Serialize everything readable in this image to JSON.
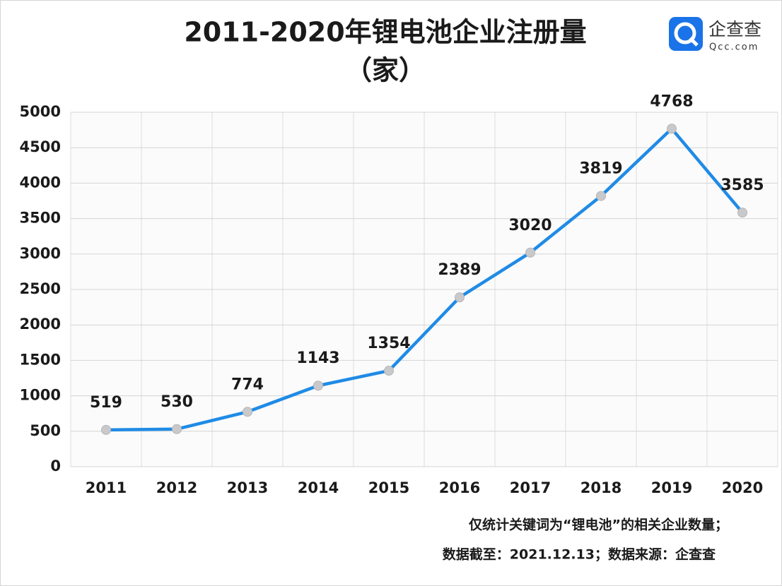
{
  "chart_data": {
    "type": "line",
    "title": "2011-2020年锂电池企业注册量",
    "subtitle": "（家）",
    "logo": {
      "name": "企查查",
      "domain": "Qcc.com"
    },
    "categories": [
      "2011",
      "2012",
      "2013",
      "2014",
      "2015",
      "2016",
      "2017",
      "2018",
      "2019",
      "2020"
    ],
    "series": [
      {
        "name": "锂电池企业注册量",
        "color": "#1f8be6",
        "marker_color": "#c9c9cc",
        "values": [
          519,
          530,
          774,
          1143,
          1354,
          2389,
          3020,
          3819,
          4768,
          3585
        ]
      }
    ],
    "ylim": [
      0,
      5000
    ],
    "yticks": [
      0,
      500,
      1000,
      1500,
      2000,
      2500,
      3000,
      3500,
      4000,
      4500,
      5000
    ],
    "grid": true,
    "notes": [
      "仅统计关键词为“锂电池”的相关企业数量；",
      "数据截至：2021.12.13；数据来源：企查查"
    ]
  }
}
